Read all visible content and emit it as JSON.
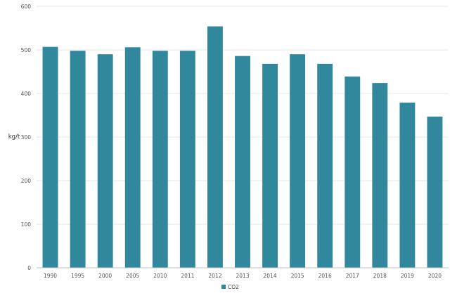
{
  "chart_data": {
    "type": "bar",
    "categories": [
      "1990",
      "1995",
      "2000",
      "2005",
      "2010",
      "2011",
      "2012",
      "2013",
      "2014",
      "2015",
      "2016",
      "2017",
      "2018",
      "2019",
      "2020"
    ],
    "series": [
      {
        "name": "CO2",
        "values": [
          507,
          498,
          490,
          506,
          498,
          498,
          554,
          486,
          468,
          490,
          468,
          439,
          424,
          379,
          347
        ]
      }
    ],
    "ylabel": "kg/t",
    "xlabel": "",
    "ylim": [
      0,
      600
    ],
    "yticks": [
      0,
      100,
      200,
      300,
      400,
      500,
      600
    ],
    "grid": true,
    "legend_position": "bottom",
    "colors": {
      "bar": "#31879c",
      "grid": "#e6e6e6",
      "axis": "#bfbfbf"
    }
  }
}
